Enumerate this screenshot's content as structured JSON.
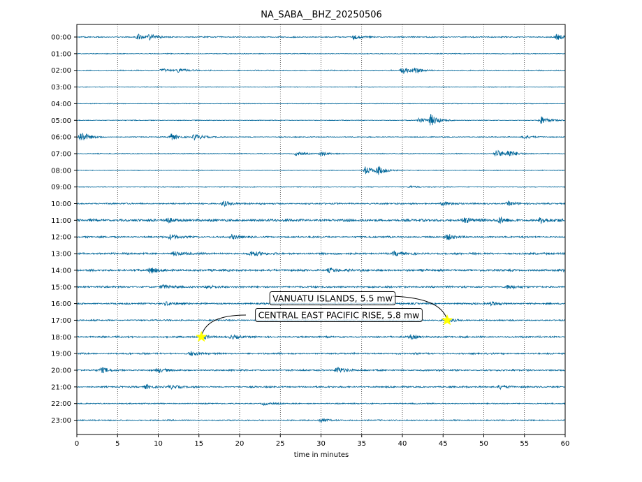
{
  "chart_data": {
    "type": "line",
    "title": "NA_SABA__BHZ_20250506",
    "xlabel": "time in minutes",
    "ylabel": "",
    "xlim": [
      0,
      60
    ],
    "x_ticks": [
      "0",
      "5",
      "10",
      "15",
      "20",
      "25",
      "30",
      "35",
      "40",
      "45",
      "50",
      "55",
      "60"
    ],
    "grid": "vertical dotted lines every 5 minutes",
    "trace_color": "#006699",
    "hours": [
      "00:00",
      "01:00",
      "02:00",
      "03:00",
      "04:00",
      "05:00",
      "06:00",
      "07:00",
      "08:00",
      "09:00",
      "10:00",
      "11:00",
      "12:00",
      "13:00",
      "14:00",
      "15:00",
      "16:00",
      "17:00",
      "18:00",
      "19:00",
      "20:00",
      "21:00",
      "22:00",
      "23:00"
    ],
    "noise_level": [
      0.9,
      0.6,
      0.7,
      0.5,
      0.5,
      0.6,
      0.7,
      0.6,
      0.6,
      0.6,
      1.2,
      2.0,
      1.3,
      1.6,
      1.7,
      1.4,
      1.3,
      1.1,
      1.3,
      1.3,
      1.3,
      1.2,
      0.9,
      0.9
    ],
    "bursts": [
      {
        "hour": 0,
        "minute": 7.5,
        "amp": 4
      },
      {
        "hour": 0,
        "minute": 9,
        "amp": 3.5
      },
      {
        "hour": 0,
        "minute": 34,
        "amp": 3
      },
      {
        "hour": 0,
        "minute": 59,
        "amp": 4
      },
      {
        "hour": 2,
        "minute": 10.5,
        "amp": 2.5
      },
      {
        "hour": 2,
        "minute": 12.5,
        "amp": 3
      },
      {
        "hour": 2,
        "minute": 40,
        "amp": 5
      },
      {
        "hour": 2,
        "minute": 41.5,
        "amp": 4
      },
      {
        "hour": 5,
        "minute": 42,
        "amp": 4
      },
      {
        "hour": 5,
        "minute": 43.5,
        "amp": 8
      },
      {
        "hour": 5,
        "minute": 57,
        "amp": 6
      },
      {
        "hour": 6,
        "minute": 0.5,
        "amp": 8
      },
      {
        "hour": 6,
        "minute": 11.5,
        "amp": 5
      },
      {
        "hour": 6,
        "minute": 14.5,
        "amp": 5
      },
      {
        "hour": 6,
        "minute": 55,
        "amp": 3
      },
      {
        "hour": 7,
        "minute": 27,
        "amp": 3
      },
      {
        "hour": 7,
        "minute": 30,
        "amp": 3
      },
      {
        "hour": 7,
        "minute": 51.5,
        "amp": 6
      },
      {
        "hour": 7,
        "minute": 53,
        "amp": 5
      },
      {
        "hour": 8,
        "minute": 35.5,
        "amp": 6
      },
      {
        "hour": 8,
        "minute": 37,
        "amp": 6
      },
      {
        "hour": 9,
        "minute": 41,
        "amp": 1.5
      },
      {
        "hour": 10,
        "minute": 18,
        "amp": 4
      },
      {
        "hour": 10,
        "minute": 45,
        "amp": 3
      },
      {
        "hour": 10,
        "minute": 53,
        "amp": 3
      },
      {
        "hour": 11,
        "minute": 11,
        "amp": 4
      },
      {
        "hour": 11,
        "minute": 47.5,
        "amp": 4
      },
      {
        "hour": 11,
        "minute": 52,
        "amp": 4
      },
      {
        "hour": 11,
        "minute": 57,
        "amp": 4
      },
      {
        "hour": 12,
        "minute": 11.5,
        "amp": 4
      },
      {
        "hour": 12,
        "minute": 19,
        "amp": 3
      },
      {
        "hour": 12,
        "minute": 45.5,
        "amp": 4
      },
      {
        "hour": 13,
        "minute": 12,
        "amp": 3
      },
      {
        "hour": 13,
        "minute": 21.5,
        "amp": 4
      },
      {
        "hour": 13,
        "minute": 39,
        "amp": 3
      },
      {
        "hour": 14,
        "minute": 9,
        "amp": 4
      },
      {
        "hour": 14,
        "minute": 31,
        "amp": 3
      },
      {
        "hour": 14,
        "minute": 60,
        "amp": 4
      },
      {
        "hour": 15,
        "minute": 10.5,
        "amp": 3
      },
      {
        "hour": 15,
        "minute": 16,
        "amp": 3
      },
      {
        "hour": 15,
        "minute": 53,
        "amp": 3
      },
      {
        "hour": 16,
        "minute": 11,
        "amp": 3
      },
      {
        "hour": 16,
        "minute": 51,
        "amp": 3
      },
      {
        "hour": 17,
        "minute": 45.5,
        "amp": 3
      },
      {
        "hour": 18,
        "minute": 15.5,
        "amp": 3
      },
      {
        "hour": 18,
        "minute": 19,
        "amp": 3
      },
      {
        "hour": 18,
        "minute": 41,
        "amp": 3
      },
      {
        "hour": 19,
        "minute": 14,
        "amp": 3
      },
      {
        "hour": 20,
        "minute": 3,
        "amp": 4
      },
      {
        "hour": 20,
        "minute": 10,
        "amp": 3
      },
      {
        "hour": 20,
        "minute": 32,
        "amp": 5
      },
      {
        "hour": 21,
        "minute": 8.5,
        "amp": 3
      },
      {
        "hour": 21,
        "minute": 11.5,
        "amp": 3
      },
      {
        "hour": 21,
        "minute": 52,
        "amp": 3
      },
      {
        "hour": 22,
        "minute": 23,
        "amp": 2
      },
      {
        "hour": 23,
        "minute": 30,
        "amp": 3
      }
    ],
    "annotations": [
      {
        "label": "VANUATU ISLANDS, 5.5 mw",
        "hour": 17,
        "minute": 45.5,
        "marker_color": "#ffff00"
      },
      {
        "label": "CENTRAL EAST PACIFIC RISE, 5.8 mw",
        "hour": 18,
        "minute": 15.3,
        "marker_color": "#ffff00"
      }
    ]
  }
}
